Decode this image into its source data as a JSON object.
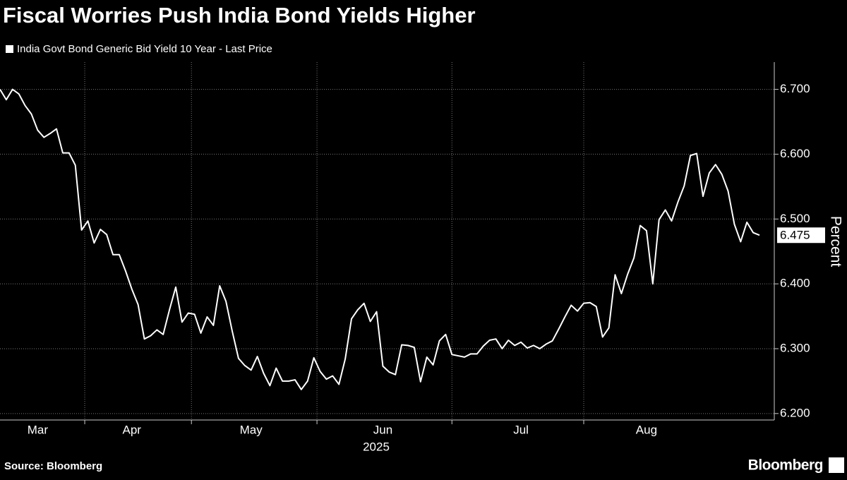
{
  "chart_data": {
    "type": "line",
    "title": "Fiscal Worries Push India Bond Yields Higher",
    "ylabel": "Percent",
    "xlabel": "2025",
    "source": "Source: Bloomberg",
    "brand": "Bloomberg",
    "grid": true,
    "ylim": [
      6.19,
      6.742
    ],
    "yticks": [
      {
        "value": 6.2,
        "label": "6.200"
      },
      {
        "value": 6.3,
        "label": "6.300"
      },
      {
        "value": 6.4,
        "label": "6.400"
      },
      {
        "value": 6.5,
        "label": "6.500"
      },
      {
        "value": 6.6,
        "label": "6.600"
      },
      {
        "value": 6.7,
        "label": "6.700"
      }
    ],
    "categories": [
      null,
      null,
      null,
      null,
      null,
      null,
      "Mar",
      null,
      null,
      null,
      null,
      null,
      null,
      null,
      null,
      null,
      null,
      null,
      null,
      null,
      null,
      "Apr",
      null,
      null,
      null,
      null,
      null,
      null,
      null,
      null,
      null,
      null,
      null,
      null,
      null,
      null,
      null,
      null,
      null,
      null,
      "May",
      null,
      null,
      null,
      null,
      null,
      null,
      null,
      null,
      null,
      null,
      null,
      null,
      null,
      null,
      null,
      null,
      null,
      null,
      null,
      null,
      "Jun",
      null,
      null,
      null,
      null,
      null,
      null,
      null,
      null,
      null,
      null,
      null,
      null,
      null,
      null,
      null,
      null,
      null,
      null,
      null,
      null,
      null,
      "Jul",
      null,
      null,
      null,
      null,
      null,
      null,
      null,
      null,
      null,
      null,
      null,
      null,
      null,
      null,
      null,
      null,
      null,
      null,
      null,
      "Aug",
      null,
      null,
      null,
      null,
      null,
      null,
      null,
      null,
      null,
      null,
      null,
      null,
      null,
      null,
      null,
      null,
      null,
      null
    ],
    "series": [
      {
        "name": "India Govt Bond Generic Bid Yield 10 Year - Last Price",
        "color": "#ffffff",
        "values": [
          6.7,
          6.684,
          6.7,
          6.693,
          6.675,
          6.662,
          6.637,
          6.626,
          6.632,
          6.639,
          6.602,
          6.602,
          6.583,
          6.483,
          6.497,
          6.463,
          6.484,
          6.476,
          6.445,
          6.445,
          6.42,
          6.392,
          6.368,
          6.315,
          6.32,
          6.329,
          6.322,
          6.36,
          6.395,
          6.341,
          6.355,
          6.353,
          6.324,
          6.349,
          6.336,
          6.397,
          6.373,
          6.327,
          6.285,
          6.274,
          6.267,
          6.288,
          6.262,
          6.243,
          6.27,
          6.25,
          6.25,
          6.252,
          6.237,
          6.25,
          6.286,
          6.265,
          6.253,
          6.258,
          6.245,
          6.284,
          6.346,
          6.36,
          6.37,
          6.342,
          6.357,
          6.273,
          6.264,
          6.26,
          6.306,
          6.305,
          6.302,
          6.249,
          6.287,
          6.275,
          6.312,
          6.322,
          6.291,
          6.289,
          6.287,
          6.292,
          6.292,
          6.304,
          6.313,
          6.315,
          6.3,
          6.313,
          6.305,
          6.31,
          6.301,
          6.305,
          6.3,
          6.307,
          6.312,
          6.33,
          6.349,
          6.367,
          6.358,
          6.37,
          6.371,
          6.365,
          6.318,
          6.332,
          6.414,
          6.385,
          6.415,
          6.44,
          6.49,
          6.482,
          6.4,
          6.499,
          6.514,
          6.497,
          6.526,
          6.551,
          6.598,
          6.601,
          6.535,
          6.571,
          6.584,
          6.569,
          6.543,
          6.492,
          6.465,
          6.495,
          6.479,
          6.475
        ]
      }
    ]
  }
}
